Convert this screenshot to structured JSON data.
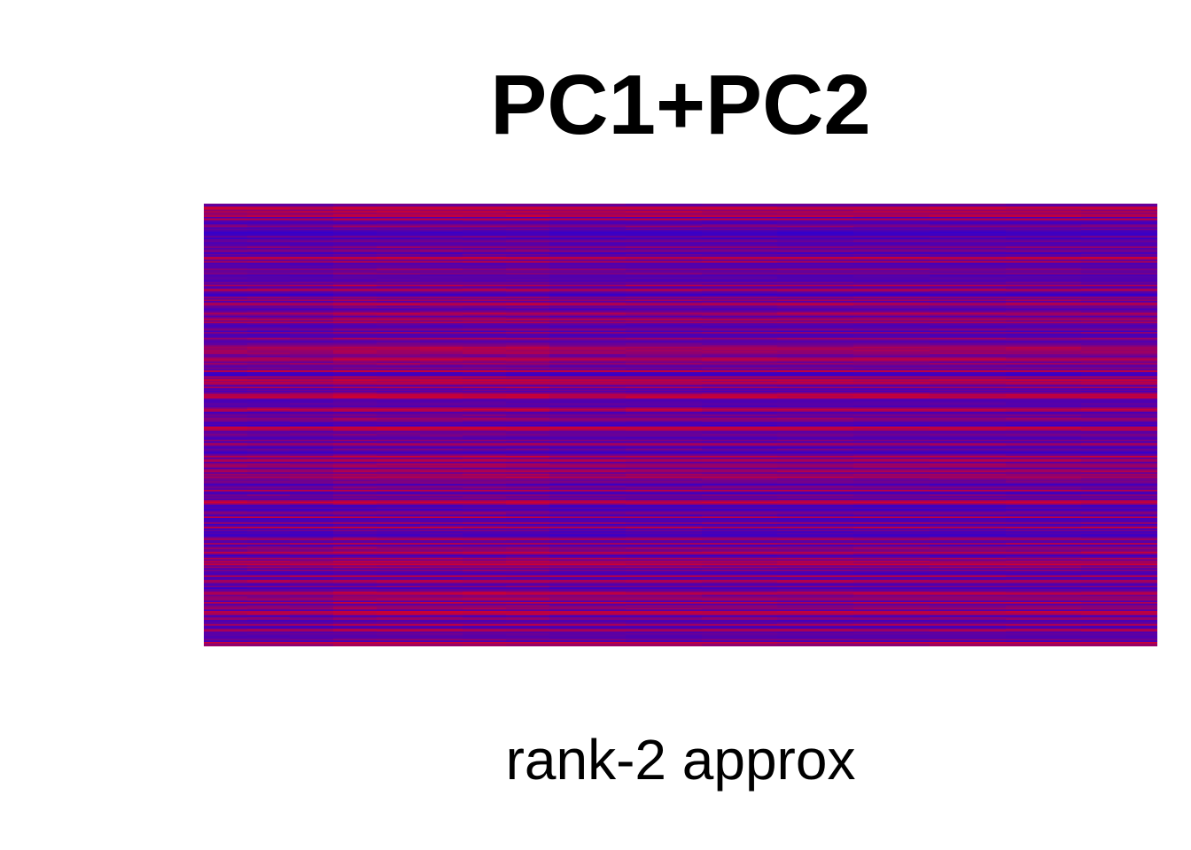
{
  "chart_data": {
    "type": "heatmap",
    "title": "PC1+PC2",
    "xlabel": "rank-2 approx",
    "ylabel": "",
    "axes_visible": false,
    "legend": "none",
    "grid": false,
    "rows": 300,
    "columns": 16,
    "column_groups": [
      {
        "columns": 3,
        "weight": 1.0
      },
      {
        "columns": 5,
        "weight": 1.0
      },
      {
        "columns": 8,
        "weight": 1.0
      }
    ],
    "color_scale": {
      "low": "#3300cc",
      "mid": "#660099",
      "high": "#cc0033"
    },
    "value_range": [
      -1,
      1
    ],
    "row_pattern_seed": 20240611
  }
}
